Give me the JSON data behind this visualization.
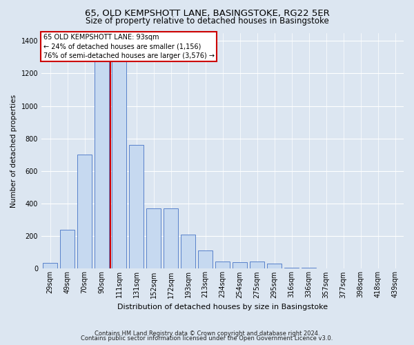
{
  "title": "65, OLD KEMPSHOTT LANE, BASINGSTOKE, RG22 5ER",
  "subtitle": "Size of property relative to detached houses in Basingstoke",
  "xlabel": "Distribution of detached houses by size in Basingstoke",
  "ylabel": "Number of detached properties",
  "footnote1": "Contains HM Land Registry data © Crown copyright and database right 2024.",
  "footnote2": "Contains public sector information licensed under the Open Government Licence v3.0.",
  "annotation_line1": "65 OLD KEMPSHOTT LANE: 93sqm",
  "annotation_line2": "← 24% of detached houses are smaller (1,156)",
  "annotation_line3": "76% of semi-detached houses are larger (3,576) →",
  "bar_labels": [
    "29sqm",
    "49sqm",
    "70sqm",
    "90sqm",
    "111sqm",
    "131sqm",
    "152sqm",
    "172sqm",
    "193sqm",
    "213sqm",
    "234sqm",
    "254sqm",
    "275sqm",
    "295sqm",
    "316sqm",
    "336sqm",
    "357sqm",
    "377sqm",
    "398sqm",
    "418sqm",
    "439sqm"
  ],
  "bar_values": [
    35,
    240,
    700,
    1300,
    1280,
    760,
    370,
    370,
    210,
    110,
    45,
    40,
    45,
    30,
    8,
    5,
    0,
    0,
    0,
    0,
    0
  ],
  "bar_color": "#c6d9f0",
  "bar_edge_color": "#4472c4",
  "red_line_x": 4,
  "red_line_color": "#cc0000",
  "annotation_box_color": "#cc0000",
  "annotation_bg": "#ffffff",
  "ylim": [
    0,
    1450
  ],
  "yticks": [
    0,
    200,
    400,
    600,
    800,
    1000,
    1200,
    1400
  ],
  "background_color": "#dce6f1",
  "plot_bg_color": "#dce6f1",
  "grid_color": "#ffffff",
  "title_fontsize": 9.5,
  "subtitle_fontsize": 8.5,
  "xlabel_fontsize": 8,
  "ylabel_fontsize": 7.5,
  "tick_fontsize": 7,
  "annotation_fontsize": 7,
  "footnote_fontsize": 6
}
